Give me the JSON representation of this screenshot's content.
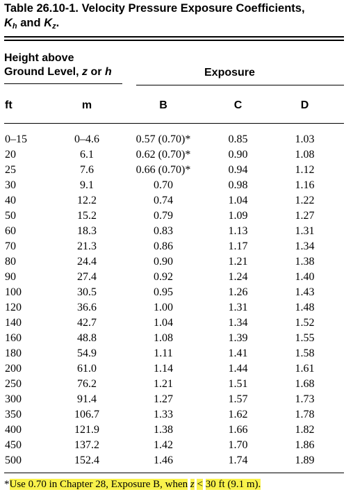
{
  "title": {
    "line1": "Table 26.10-1. Velocity Pressure Exposure Coefficients,",
    "k1": "K",
    "k1_sub": "h",
    "and": "and",
    "k2": "K",
    "k2_sub": "z",
    "period": "."
  },
  "header": {
    "height_line1": "Height above",
    "height_line2": "Ground Level,",
    "height_z": "z",
    "height_or": "or",
    "height_h": "h",
    "exposure": "Exposure"
  },
  "columns": {
    "ft": "ft",
    "m": "m",
    "b": "B",
    "c": "C",
    "d": "D"
  },
  "rows": [
    {
      "ft": "0–15",
      "m": "0–4.6",
      "b": "0.57 (0.70)*",
      "c": "0.85",
      "d": "1.03"
    },
    {
      "ft": "20",
      "m": "6.1",
      "b": "0.62 (0.70)*",
      "c": "0.90",
      "d": "1.08"
    },
    {
      "ft": "25",
      "m": "7.6",
      "b": "0.66 (0.70)*",
      "c": "0.94",
      "d": "1.12"
    },
    {
      "ft": "30",
      "m": "9.1",
      "b": "0.70",
      "c": "0.98",
      "d": "1.16"
    },
    {
      "ft": "40",
      "m": "12.2",
      "b": "0.74",
      "c": "1.04",
      "d": "1.22"
    },
    {
      "ft": "50",
      "m": "15.2",
      "b": "0.79",
      "c": "1.09",
      "d": "1.27"
    },
    {
      "ft": "60",
      "m": "18.3",
      "b": "0.83",
      "c": "1.13",
      "d": "1.31"
    },
    {
      "ft": "70",
      "m": "21.3",
      "b": "0.86",
      "c": "1.17",
      "d": "1.34"
    },
    {
      "ft": "80",
      "m": "24.4",
      "b": "0.90",
      "c": "1.21",
      "d": "1.38"
    },
    {
      "ft": "90",
      "m": "27.4",
      "b": "0.92",
      "c": "1.24",
      "d": "1.40"
    },
    {
      "ft": "100",
      "m": "30.5",
      "b": "0.95",
      "c": "1.26",
      "d": "1.43"
    },
    {
      "ft": "120",
      "m": "36.6",
      "b": "1.00",
      "c": "1.31",
      "d": "1.48"
    },
    {
      "ft": "140",
      "m": "42.7",
      "b": "1.04",
      "c": "1.34",
      "d": "1.52"
    },
    {
      "ft": "160",
      "m": "48.8",
      "b": "1.08",
      "c": "1.39",
      "d": "1.55"
    },
    {
      "ft": "180",
      "m": "54.9",
      "b": "1.11",
      "c": "1.41",
      "d": "1.58"
    },
    {
      "ft": "200",
      "m": "61.0",
      "b": "1.14",
      "c": "1.44",
      "d": "1.61"
    },
    {
      "ft": "250",
      "m": "76.2",
      "b": "1.21",
      "c": "1.51",
      "d": "1.68"
    },
    {
      "ft": "300",
      "m": "91.4",
      "b": "1.27",
      "c": "1.57",
      "d": "1.73"
    },
    {
      "ft": "350",
      "m": "106.7",
      "b": "1.33",
      "c": "1.62",
      "d": "1.78"
    },
    {
      "ft": "400",
      "m": "121.9",
      "b": "1.38",
      "c": "1.66",
      "d": "1.82"
    },
    {
      "ft": "450",
      "m": "137.2",
      "b": "1.42",
      "c": "1.70",
      "d": "1.86"
    },
    {
      "ft": "500",
      "m": "152.4",
      "b": "1.46",
      "c": "1.74",
      "d": "1.89"
    }
  ],
  "footnote": {
    "star": "*",
    "part1": "Use 0.70 in Chapter 28, Exposure B, when",
    "var": "z",
    "lt": "<",
    "part2": "30 ft (9.1 m)."
  },
  "colors": {
    "highlight": "#f9f24b"
  }
}
